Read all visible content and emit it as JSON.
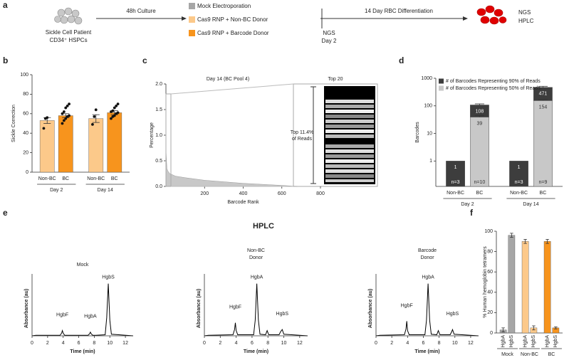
{
  "panel_labels": [
    "a",
    "b",
    "c",
    "d",
    "e",
    "f"
  ],
  "figure_title": "HPLC",
  "diagram": {
    "source": [
      "Sickle Cell Patient",
      "CD34⁺ HSPCs"
    ],
    "culture": "48h Culture",
    "conditions": [
      {
        "label": "Mock Electroporation",
        "color": "#a6a6a6"
      },
      {
        "label": "Cas9 RNP + Non-BC Donor",
        "color": "#fcc98a"
      },
      {
        "label": "Cas9 RNP + Barcode Donor",
        "color": "#f7941d"
      }
    ],
    "differentiation": "14 Day RBC Differentiation",
    "sampling": [
      "NGS",
      "Day 2"
    ],
    "readouts": [
      "NGS",
      "HPLC"
    ]
  },
  "chart_data": [
    {
      "type": "bar",
      "ylabel": "Sickle Correction",
      "categories": [
        "Non-BC",
        "BC",
        "Non-BC",
        "BC"
      ],
      "groups": [
        "Day 2",
        "Day 14"
      ],
      "values": [
        53,
        58,
        55,
        61
      ],
      "errors": [
        3,
        2,
        4,
        2
      ],
      "colors": [
        "#fcc98a",
        "#f7941d",
        "#fcc98a",
        "#f7941d"
      ],
      "points": [
        [
          45,
          55,
          56
        ],
        [
          50,
          53,
          55,
          57,
          58,
          60,
          62,
          66,
          68,
          70
        ],
        [
          49,
          57,
          64
        ],
        [
          55,
          57,
          58,
          60,
          61,
          62,
          63,
          66,
          68,
          70
        ]
      ],
      "ylim": [
        0,
        100
      ],
      "yticks": [
        0,
        20,
        40,
        60,
        80,
        100
      ]
    },
    {
      "type": "area",
      "title": "Day 14 (BC Pool 4)",
      "inset_title": "Top 20",
      "annotation": [
        "Top 11.4%",
        "of Reads"
      ],
      "xlabel": "Barcode Rank",
      "ylabel": "Percentage",
      "color": "#c8c8c8",
      "x": [
        1,
        5,
        10,
        20,
        50,
        100,
        200,
        300,
        400,
        500,
        600,
        680
      ],
      "values": [
        0.65,
        0.35,
        0.3,
        0.25,
        0.2,
        0.17,
        0.12,
        0.09,
        0.06,
        0.04,
        0.02,
        0
      ],
      "xlim": [
        0,
        800
      ],
      "xticks": [
        200,
        400,
        600,
        800
      ],
      "ylim": [
        0,
        2.0
      ],
      "yticks": [
        {
          "value": 0,
          "label": "0.0"
        },
        0.5,
        {
          "value": 1,
          "label": "1.0"
        },
        1.5,
        {
          "value": 2,
          "label": "2.0"
        }
      ]
    },
    {
      "type": "bar",
      "ylabel": "Barcodes",
      "categories": [
        "Non-BC",
        "BC",
        "Non-BC",
        "BC"
      ],
      "groups": [
        "Day 2",
        "Day 14"
      ],
      "log_scale": true,
      "legend": "top-left",
      "series": [
        {
          "name": "# of Barcodes Representing 90% of Reads",
          "color": "#3d3d3d",
          "values": [
            1,
            108,
            1,
            471
          ],
          "errors": [
            null,
            10,
            null,
            40
          ]
        },
        {
          "name": "# of Barcodes Representing 50% of Reads",
          "color": "#c8c8c8",
          "values": [
            null,
            39,
            null,
            154
          ],
          "errors": [
            null,
            5,
            null,
            15
          ]
        }
      ],
      "n_labels": [
        "n=3",
        "n=10",
        "n=3",
        "n=9"
      ],
      "ylim": [
        0.12,
        1000
      ],
      "yticks": [
        1,
        10,
        100,
        1000
      ]
    },
    {
      "type": "line",
      "title": [
        "Mock"
      ],
      "xlabel": "Time (min)",
      "ylabel": "Absorbance (au)",
      "color": "#000000",
      "x": [
        0,
        0.5,
        3.6,
        3.8,
        3.9,
        4.0,
        4.2,
        5.0,
        7.2,
        7.4,
        7.5,
        7.6,
        7.8,
        8.2,
        9.4,
        9.6,
        9.8,
        10.0,
        10.2,
        13
      ],
      "values": [
        0,
        0.01,
        0.01,
        0.05,
        0.1,
        0.05,
        0.01,
        0.01,
        0.01,
        0.04,
        0.07,
        0.04,
        0.01,
        0.01,
        0.02,
        0.35,
        1.0,
        0.3,
        0.03,
        0
      ],
      "peaks": [
        {
          "label": "HgbF",
          "time": 3.9
        },
        {
          "label": "HgbA",
          "time": 7.5
        },
        {
          "label": "HgbS",
          "time": 9.8
        }
      ],
      "xlim": [
        0,
        13
      ],
      "xticks": [
        0,
        2,
        4,
        6,
        8,
        10,
        12
      ],
      "ylim": [
        0,
        1.05
      ]
    },
    {
      "type": "line",
      "title": [
        "Non-BC",
        "Donor"
      ],
      "xlabel": "Time (min)",
      "ylabel": "Absorbance (au)",
      "color": "#000000",
      "x": [
        0,
        0.5,
        3.6,
        3.8,
        3.9,
        4.0,
        4.2,
        6.2,
        6.4,
        6.6,
        6.8,
        7.0,
        7.7,
        7.9,
        8.1,
        9.4,
        9.6,
        9.8,
        10.0,
        13
      ],
      "values": [
        0,
        0.01,
        0.02,
        0.12,
        0.25,
        0.1,
        0.02,
        0.02,
        0.3,
        1.0,
        0.3,
        0.03,
        0.02,
        0.1,
        0.02,
        0.02,
        0.08,
        0.12,
        0.03,
        0
      ],
      "peaks": [
        {
          "label": "HgbF",
          "time": 3.9
        },
        {
          "label": "HgbA",
          "time": 6.6
        },
        {
          "label": "HgbS",
          "time": 9.8
        }
      ],
      "xlim": [
        0,
        13
      ],
      "xticks": [
        0,
        2,
        4,
        6,
        8,
        10,
        12
      ],
      "ylim": [
        0,
        1.05
      ]
    },
    {
      "type": "line",
      "title": [
        "Barcode",
        "Donor"
      ],
      "xlabel": "Time (min)",
      "ylabel": "Absorbance (au)",
      "color": "#000000",
      "x": [
        0,
        0.5,
        3.6,
        3.8,
        3.9,
        4.0,
        4.2,
        6.2,
        6.4,
        6.6,
        6.8,
        7.0,
        7.7,
        7.9,
        8.1,
        9.4,
        9.6,
        9.7,
        9.9,
        13
      ],
      "values": [
        0,
        0.01,
        0.02,
        0.13,
        0.28,
        0.1,
        0.02,
        0.02,
        0.3,
        1.0,
        0.3,
        0.03,
        0.02,
        0.1,
        0.02,
        0.02,
        0.08,
        0.12,
        0.03,
        0
      ],
      "peaks": [
        {
          "label": "HgbF",
          "time": 3.9
        },
        {
          "label": "HgbA",
          "time": 6.6
        },
        {
          "label": "HgbS",
          "time": 9.7
        }
      ],
      "xlim": [
        0,
        13
      ],
      "xticks": [
        0,
        2,
        4,
        6,
        8,
        10,
        12
      ],
      "ylim": [
        0,
        1.05
      ]
    },
    {
      "type": "bar",
      "ylabel": "% Human hemoglobin tetramers",
      "categories": [
        "HgbA",
        "HgbS",
        "HgbA",
        "HgbS",
        "HgbA",
        "HgbS"
      ],
      "groups": [
        "Mock",
        "Non-BC",
        "BC"
      ],
      "values": [
        3,
        96,
        90,
        5,
        90,
        5
      ],
      "errors": [
        2,
        2,
        2,
        2,
        2,
        1
      ],
      "colors": [
        "#a6a6a6",
        "#a6a6a6",
        "#fcc98a",
        "#fcc98a",
        "#f7941d",
        "#f7941d"
      ],
      "rotate_labels": true,
      "ylim": [
        0,
        100
      ],
      "yticks": [
        0,
        20,
        40,
        60,
        80,
        100
      ]
    }
  ]
}
